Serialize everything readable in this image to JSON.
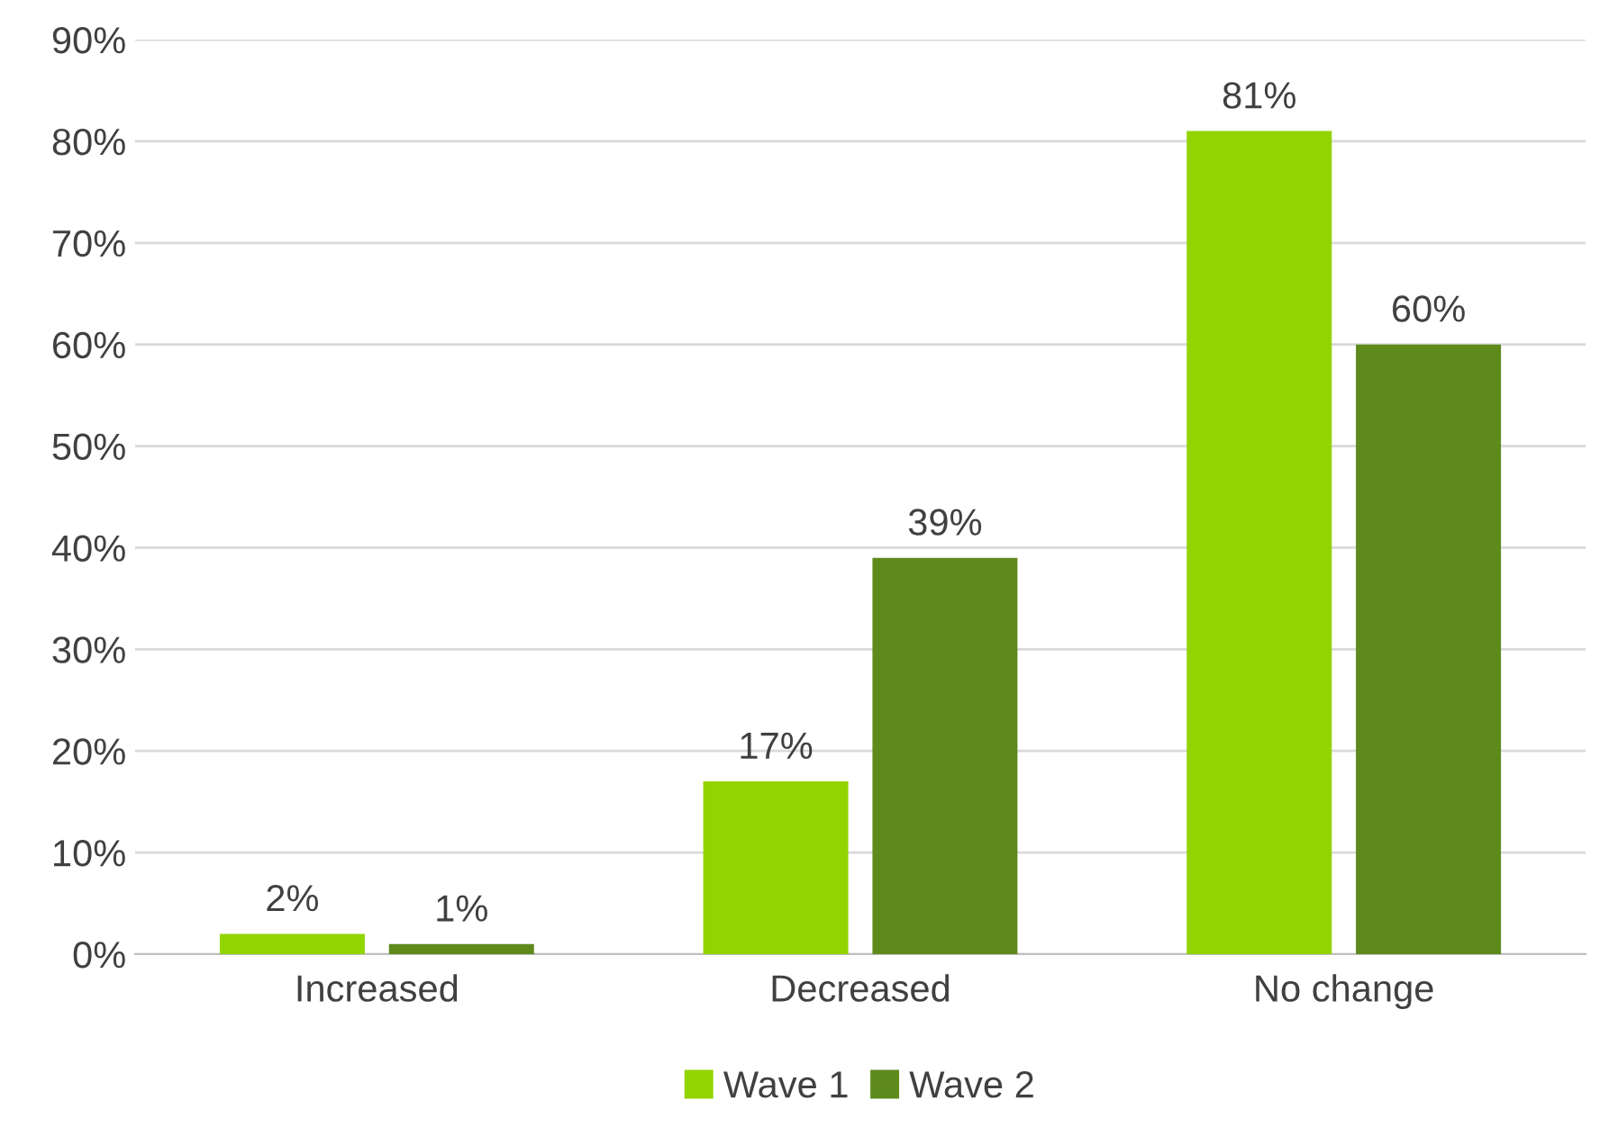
{
  "chart_data": {
    "type": "bar",
    "categories": [
      "Increased",
      "Decreased",
      "No change"
    ],
    "series": [
      {
        "name": "Wave 1",
        "color": "#92d400",
        "values": [
          2,
          17,
          81
        ],
        "value_labels": [
          "2%",
          "17%",
          "81%"
        ]
      },
      {
        "name": "Wave 2",
        "color": "#5e8a1c",
        "values": [
          1,
          39,
          60
        ],
        "value_labels": [
          "1%",
          "39%",
          "60%"
        ]
      }
    ],
    "ylim": [
      0,
      90
    ],
    "yticks": [
      {
        "value": 0,
        "label": "0%"
      },
      {
        "value": 10,
        "label": "10%"
      },
      {
        "value": 20,
        "label": "20%"
      },
      {
        "value": 30,
        "label": "30%"
      },
      {
        "value": 40,
        "label": "40%"
      },
      {
        "value": 50,
        "label": "50%"
      },
      {
        "value": 60,
        "label": "60%"
      },
      {
        "value": 70,
        "label": "70%"
      },
      {
        "value": 80,
        "label": "80%"
      },
      {
        "value": 90,
        "label": "90%"
      }
    ],
    "grid": "y",
    "legend": "bottom"
  }
}
